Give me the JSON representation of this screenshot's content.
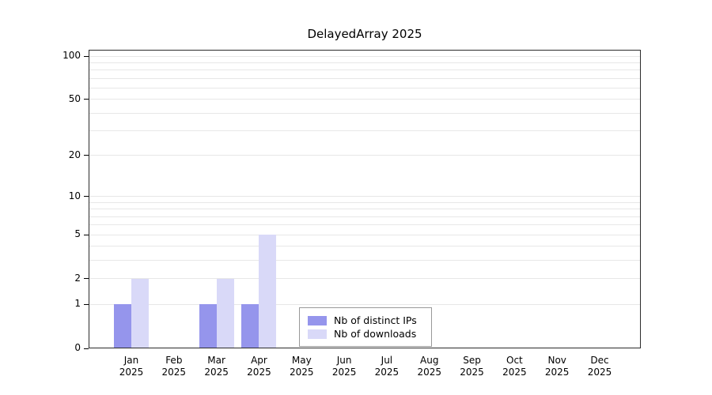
{
  "chart_data": {
    "type": "bar",
    "title": "DelayedArray 2025",
    "categories": [
      "Jan 2025",
      "Feb 2025",
      "Mar 2025",
      "Apr 2025",
      "May 2025",
      "Jun 2025",
      "Jul 2025",
      "Aug 2025",
      "Sep 2025",
      "Oct 2025",
      "Nov 2025",
      "Dec 2025"
    ],
    "series": [
      {
        "name": "Nb of distinct IPs",
        "color": "#9595ec",
        "values": [
          1,
          0,
          1,
          1,
          0,
          0,
          0,
          0,
          0,
          0,
          0,
          0
        ]
      },
      {
        "name": "Nb of downloads",
        "color": "#d9d9f8",
        "values": [
          2,
          0,
          2,
          5,
          0,
          0,
          0,
          0,
          0,
          0,
          0,
          0
        ]
      }
    ],
    "xlabel": "",
    "ylabel": "",
    "yscale": "log10(1+x)",
    "ylim": [
      0,
      110
    ],
    "yticks": [
      0,
      1,
      2,
      5,
      10,
      20,
      50,
      100
    ],
    "gridline_values": [
      1,
      2,
      3,
      4,
      5,
      6,
      7,
      8,
      9,
      10,
      20,
      30,
      40,
      50,
      60,
      70,
      80,
      90,
      100
    ],
    "grid": "horizontal",
    "legend_position": "inside-bottom-center",
    "colors": {
      "grid": "#e7e7e7",
      "axis": "#2b2b2b",
      "background": "#ffffff"
    }
  }
}
